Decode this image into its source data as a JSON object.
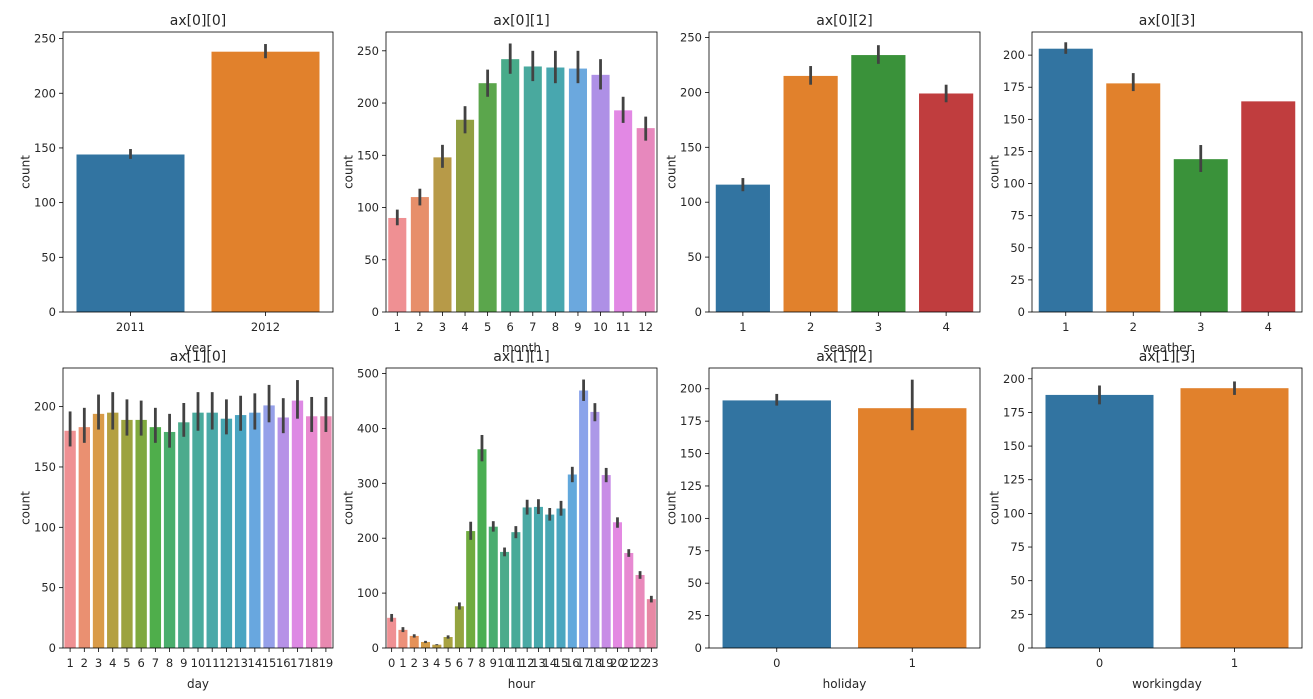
{
  "chart_data": [
    {
      "type": "bar",
      "title": "ax[0][0]",
      "xlabel": "year",
      "ylabel": "count",
      "categories": [
        "2011",
        "2012"
      ],
      "values": [
        144,
        238
      ],
      "err_low": [
        140,
        232
      ],
      "err_high": [
        149,
        245
      ],
      "colors": [
        "#3274a1",
        "#e1812c"
      ],
      "ylim": [
        0,
        256
      ],
      "yticks": [
        0,
        50,
        100,
        150,
        200,
        250
      ]
    },
    {
      "type": "bar",
      "title": "ax[0][1]",
      "xlabel": "month",
      "ylabel": "count",
      "categories": [
        "1",
        "2",
        "3",
        "4",
        "5",
        "6",
        "7",
        "8",
        "9",
        "10",
        "11",
        "12"
      ],
      "values": [
        90,
        110,
        148,
        184,
        219,
        242,
        235,
        234,
        233,
        227,
        193,
        176
      ],
      "err_low": [
        83,
        102,
        138,
        171,
        206,
        228,
        221,
        219,
        219,
        213,
        181,
        164
      ],
      "err_high": [
        98,
        118,
        160,
        197,
        232,
        257,
        250,
        250,
        250,
        242,
        206,
        187
      ],
      "colors": [
        "#ef9093",
        "#e78f6a",
        "#b79a48",
        "#929f43",
        "#5ba64c",
        "#48ab8a",
        "#49a99e",
        "#48a7af",
        "#6ba8de",
        "#ae90e6",
        "#e288e4",
        "#e788bd"
      ],
      "ylim": [
        0,
        268
      ],
      "yticks": [
        0,
        50,
        100,
        150,
        200,
        250
      ]
    },
    {
      "type": "bar",
      "title": "ax[0][2]",
      "xlabel": "season",
      "ylabel": "count",
      "categories": [
        "1",
        "2",
        "3",
        "4"
      ],
      "values": [
        116,
        215,
        234,
        199
      ],
      "err_low": [
        110,
        207,
        226,
        191
      ],
      "err_high": [
        122,
        224,
        243,
        207
      ],
      "colors": [
        "#3274a1",
        "#e1812c",
        "#3a923a",
        "#c03d3e"
      ],
      "ylim": [
        0,
        255
      ],
      "yticks": [
        0,
        50,
        100,
        150,
        200,
        250
      ]
    },
    {
      "type": "bar",
      "title": "ax[0][3]",
      "xlabel": "weather",
      "ylabel": "count",
      "categories": [
        "1",
        "2",
        "3",
        "4"
      ],
      "values": [
        205,
        178,
        119,
        164
      ],
      "err_low": [
        201,
        172,
        109,
        164
      ],
      "err_high": [
        210,
        186,
        130,
        164
      ],
      "colors": [
        "#3274a1",
        "#e1812c",
        "#3a923a",
        "#c03d3e"
      ],
      "ylim": [
        0,
        218
      ],
      "yticks": [
        0,
        25,
        50,
        75,
        100,
        125,
        150,
        175,
        200
      ]
    },
    {
      "type": "bar",
      "title": "ax[1][0]",
      "xlabel": "day",
      "ylabel": "count",
      "categories": [
        "1",
        "2",
        "3",
        "4",
        "5",
        "6",
        "7",
        "8",
        "9",
        "10",
        "11",
        "12",
        "13",
        "14",
        "15",
        "16",
        "17",
        "18",
        "19"
      ],
      "values": [
        180,
        183,
        194,
        195,
        189,
        189,
        183,
        179,
        187,
        195,
        195,
        190,
        193,
        195,
        201,
        191,
        205,
        192,
        192
      ],
      "err_low": [
        167,
        170,
        181,
        181,
        176,
        176,
        170,
        166,
        175,
        180,
        181,
        177,
        180,
        181,
        187,
        178,
        190,
        179,
        179
      ],
      "err_high": [
        196,
        199,
        210,
        212,
        206,
        205,
        199,
        194,
        203,
        212,
        212,
        206,
        209,
        211,
        218,
        207,
        222,
        208,
        208
      ],
      "colors": [
        "#ef9093",
        "#ea9071",
        "#d99b48",
        "#b4a040",
        "#9ca33f",
        "#7fa93f",
        "#4fae4b",
        "#4aae6c",
        "#4cab8d",
        "#49aa9c",
        "#4ba9a8",
        "#47a7b2",
        "#4aa5c2",
        "#68a7df",
        "#95a0e9",
        "#b691e7",
        "#dd89e4",
        "#e989d0",
        "#e889b0"
      ],
      "ylim": [
        0,
        232
      ],
      "yticks": [
        0,
        50,
        100,
        150,
        200
      ]
    },
    {
      "type": "bar",
      "title": "ax[1][1]",
      "xlabel": "hour",
      "ylabel": "count",
      "categories": [
        "0",
        "1",
        "2",
        "3",
        "4",
        "5",
        "6",
        "7",
        "8",
        "9",
        "10",
        "11",
        "12",
        "13",
        "14",
        "15",
        "16",
        "17",
        "18",
        "19",
        "20",
        "21",
        "22",
        "23"
      ],
      "values": [
        55,
        33,
        22,
        11,
        6,
        20,
        76,
        213,
        362,
        221,
        175,
        211,
        256,
        257,
        243,
        254,
        316,
        469,
        430,
        315,
        229,
        173,
        133,
        89
      ],
      "err_low": [
        48,
        29,
        19,
        9,
        5,
        17,
        70,
        197,
        340,
        212,
        167,
        200,
        243,
        244,
        232,
        241,
        302,
        450,
        413,
        302,
        219,
        166,
        126,
        83
      ],
      "err_high": [
        62,
        38,
        25,
        13,
        7,
        23,
        83,
        230,
        388,
        231,
        183,
        222,
        270,
        271,
        255,
        268,
        330,
        489,
        446,
        328,
        238,
        180,
        140,
        95
      ],
      "colors": [
        "#ef9093",
        "#ec9079",
        "#e59158",
        "#d39b47",
        "#bc9e42",
        "#a8a241",
        "#94a43f",
        "#6fab3e",
        "#4aae52",
        "#4aad6f",
        "#4cab8b",
        "#48aa98",
        "#4aa9a4",
        "#47a8ac",
        "#48a7b4",
        "#4ba6c0",
        "#62a8dc",
        "#8aa3ea",
        "#ac98e8",
        "#c88ce6",
        "#e389e2",
        "#e789d2",
        "#e989bb",
        "#e788a4"
      ],
      "ylim": [
        0,
        510
      ],
      "yticks": [
        0,
        100,
        200,
        300,
        400,
        500
      ]
    },
    {
      "type": "bar",
      "title": "ax[1][2]",
      "xlabel": "holiday",
      "ylabel": "count",
      "categories": [
        "0",
        "1"
      ],
      "values": [
        191,
        185
      ],
      "err_low": [
        187,
        168
      ],
      "err_high": [
        196,
        207
      ],
      "colors": [
        "#3274a1",
        "#e1812c"
      ],
      "ylim": [
        0,
        216
      ],
      "yticks": [
        0,
        25,
        50,
        75,
        100,
        125,
        150,
        175,
        200
      ]
    },
    {
      "type": "bar",
      "title": "ax[1][3]",
      "xlabel": "workingday",
      "ylabel": "count",
      "categories": [
        "0",
        "1"
      ],
      "values": [
        188,
        193
      ],
      "err_low": [
        181,
        188
      ],
      "err_high": [
        195,
        198
      ],
      "colors": [
        "#3274a1",
        "#e1812c"
      ],
      "ylim": [
        0,
        208
      ],
      "yticks": [
        0,
        25,
        50,
        75,
        100,
        125,
        150,
        175,
        200
      ]
    }
  ]
}
